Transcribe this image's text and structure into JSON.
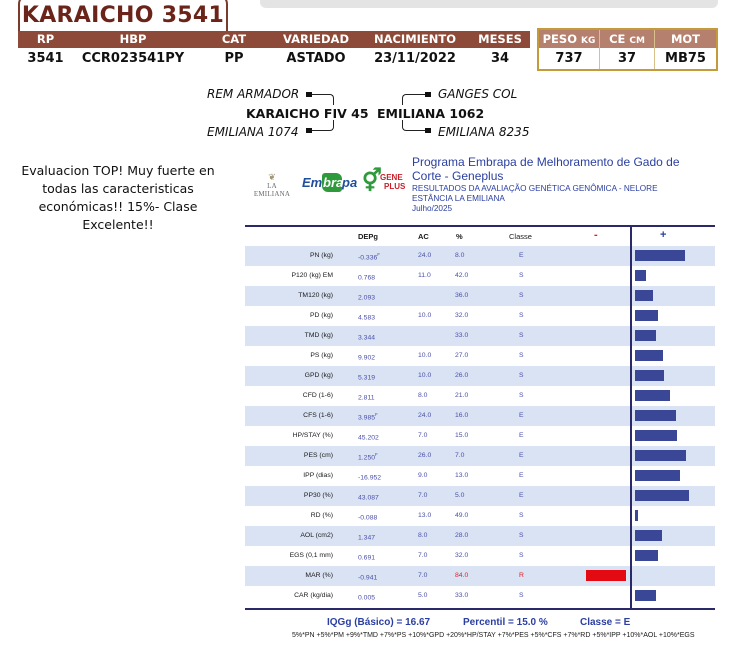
{
  "animal": {
    "name": "KARAICHO 3541"
  },
  "header": {
    "columns": [
      {
        "label": "RP",
        "value": "3541"
      },
      {
        "label": "HBP",
        "value": "CCR023541PY"
      },
      {
        "label": "CAT",
        "value": "PP"
      },
      {
        "label": "VARIEDAD",
        "value": "ASTADO"
      },
      {
        "label": "NACIMIENTO",
        "value": "23/11/2022"
      },
      {
        "label": "MESES",
        "value": "34"
      }
    ],
    "measures": [
      {
        "label": "PESO",
        "unit": "KG",
        "value": "737"
      },
      {
        "label": "CE",
        "unit": "CM",
        "value": "37"
      },
      {
        "label": "MOT",
        "unit": "",
        "value": "MB75"
      }
    ]
  },
  "pedigree": {
    "sire": "KARAICHO FIV 45",
    "sire_sire": "REM ARMADOR",
    "sire_dam": "EMILIANA 1074",
    "dam": "EMILIANA 1062",
    "dam_sire": "GANGES COL",
    "dam_dam": "EMILIANA 8235"
  },
  "comment": "Evaluacion TOP! Muy fuerte en todas las caracteristicas económicas!! 15%- Clase Excelente!!",
  "logos": {
    "emiliana": "LA EMILIANA",
    "embrapa": [
      "Em",
      "bra",
      "pa"
    ],
    "geneplus": [
      "GENE",
      "PLUS"
    ]
  },
  "program": {
    "title": "Programa Embrapa de Melhoramento de Gado de Corte - Geneplus",
    "line1": "RESULTADOS DA AVALIAÇÃO GENÉTICA GENÔMICA - NELORE",
    "line2": "ESTÂNCIA LA EMILIANA",
    "date": "Julho/2025"
  },
  "colors": {
    "brown_header": "#8d4a39",
    "title_brown": "#6b2419",
    "gold_border": "#c49a3a",
    "bar_positive": "#3a4696",
    "bar_negative": "#e30a14",
    "row_shade": "#d9e3f4",
    "text_blue": "#2b3fa0"
  },
  "table": {
    "headers": {
      "dep": "DEPg",
      "ac": "AC",
      "pct": "%",
      "classe": "Classe",
      "minus": "-",
      "plus": "+"
    },
    "rows": [
      {
        "trait": "PN (kg)",
        "dep": "-0.336",
        "flag": "F",
        "ac": "24.0",
        "pct": "8.0",
        "classe": "E",
        "bar": 50
      },
      {
        "trait": "P120 (kg) EM",
        "dep": "0.768",
        "flag": "",
        "ac": "11.0",
        "pct": "42.0",
        "classe": "S",
        "bar": 11
      },
      {
        "trait": "TM120 (kg)",
        "dep": "2.093",
        "flag": "",
        "ac": "",
        "pct": "36.0",
        "classe": "S",
        "bar": 18
      },
      {
        "trait": "PD (kg)",
        "dep": "4.583",
        "flag": "",
        "ac": "10.0",
        "pct": "32.0",
        "classe": "S",
        "bar": 23
      },
      {
        "trait": "TMD (kg)",
        "dep": "3.344",
        "flag": "",
        "ac": "",
        "pct": "33.0",
        "classe": "S",
        "bar": 21
      },
      {
        "trait": "PS (kg)",
        "dep": "9.902",
        "flag": "",
        "ac": "10.0",
        "pct": "27.0",
        "classe": "S",
        "bar": 28
      },
      {
        "trait": "GPD (kg)",
        "dep": "5.319",
        "flag": "",
        "ac": "10.0",
        "pct": "26.0",
        "classe": "S",
        "bar": 29
      },
      {
        "trait": "CFD (1-6)",
        "dep": "2.811",
        "flag": "",
        "ac": "8.0",
        "pct": "21.0",
        "classe": "S",
        "bar": 35
      },
      {
        "trait": "CFS (1-6)",
        "dep": "3.985",
        "flag": "F",
        "ac": "24.0",
        "pct": "16.0",
        "classe": "E",
        "bar": 41
      },
      {
        "trait": "HP/STAY (%)",
        "dep": "45.202",
        "flag": "",
        "ac": "7.0",
        "pct": "15.0",
        "classe": "E",
        "bar": 42
      },
      {
        "trait": "PES (cm)",
        "dep": "1.250",
        "flag": "F",
        "ac": "26.0",
        "pct": "7.0",
        "classe": "E",
        "bar": 51
      },
      {
        "trait": "IPP (dias)",
        "dep": "-16.952",
        "flag": "",
        "ac": "9.0",
        "pct": "13.0",
        "classe": "E",
        "bar": 45
      },
      {
        "trait": "PP30 (%)",
        "dep": "43.087",
        "flag": "",
        "ac": "7.0",
        "pct": "5.0",
        "classe": "E",
        "bar": 54
      },
      {
        "trait": "RD (%)",
        "dep": "-0.088",
        "flag": "",
        "ac": "13.0",
        "pct": "49.0",
        "classe": "S",
        "bar": 3
      },
      {
        "trait": "AOL (cm2)",
        "dep": "1.347",
        "flag": "",
        "ac": "8.0",
        "pct": "28.0",
        "classe": "S",
        "bar": 27
      },
      {
        "trait": "EGS (0,1 mm)",
        "dep": "0.691",
        "flag": "",
        "ac": "7.0",
        "pct": "32.0",
        "classe": "S",
        "bar": 23
      },
      {
        "trait": "MAR (%)",
        "dep": "-0.941",
        "flag": "",
        "ac": "7.0",
        "pct": "84.0",
        "classe": "R",
        "bar": -40
      },
      {
        "trait": "CAR (kg/dia)",
        "dep": "0.005",
        "flag": "",
        "ac": "5.0",
        "pct": "33.0",
        "classe": "S",
        "bar": 21
      }
    ]
  },
  "summary": {
    "iqg": "IQGg (Básico) = 16.67",
    "percentil": "Percentil = 15.0 %",
    "classe": "Classe = E",
    "formula": "5%*PN +5%*PM +9%*TMD +7%*PS +10%*GPD +20%*HP/STAY +7%*PES +5%*CFS +7%*RD +5%*IPP +10%*AOL +10%*EGS"
  }
}
